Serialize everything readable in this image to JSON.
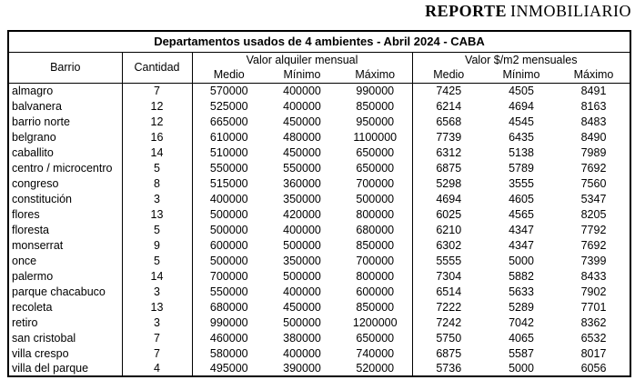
{
  "brand": {
    "bold": "REPORTE",
    "regular": "INMOBILIARIO"
  },
  "table": {
    "title": "Departamentos usados de 4 ambientes - Abril 2024 - CABA",
    "headers": {
      "barrio": "Barrio",
      "cantidad": "Cantidad",
      "group_alquiler": "Valor alquiler mensual",
      "group_m2": "Valor $/m2 mensuales",
      "sub": [
        "Medio",
        "Mínimo",
        "Máximo",
        "Medio",
        "Mínimo",
        "Máximo"
      ]
    },
    "rows": [
      [
        "almagro",
        "7",
        "570000",
        "400000",
        "990000",
        "7425",
        "4505",
        "8491"
      ],
      [
        "balvanera",
        "12",
        "525000",
        "400000",
        "850000",
        "6214",
        "4694",
        "8163"
      ],
      [
        "barrio norte",
        "12",
        "665000",
        "450000",
        "950000",
        "6568",
        "4545",
        "8483"
      ],
      [
        "belgrano",
        "16",
        "610000",
        "480000",
        "1100000",
        "7739",
        "6435",
        "8490"
      ],
      [
        "caballito",
        "14",
        "510000",
        "450000",
        "650000",
        "6312",
        "5138",
        "7989"
      ],
      [
        "centro / microcentro",
        "5",
        "550000",
        "550000",
        "650000",
        "6875",
        "5789",
        "7692"
      ],
      [
        "congreso",
        "8",
        "515000",
        "360000",
        "700000",
        "5298",
        "3555",
        "7560"
      ],
      [
        "constitución",
        "3",
        "400000",
        "350000",
        "500000",
        "4694",
        "4605",
        "5347"
      ],
      [
        "flores",
        "13",
        "500000",
        "420000",
        "800000",
        "6025",
        "4565",
        "8205"
      ],
      [
        "floresta",
        "5",
        "500000",
        "400000",
        "680000",
        "6210",
        "4347",
        "7792"
      ],
      [
        "monserrat",
        "9",
        "600000",
        "500000",
        "850000",
        "6302",
        "4347",
        "7692"
      ],
      [
        "once",
        "5",
        "500000",
        "350000",
        "700000",
        "5555",
        "5000",
        "7399"
      ],
      [
        "palermo",
        "14",
        "700000",
        "500000",
        "800000",
        "7304",
        "5882",
        "8433"
      ],
      [
        "parque chacabuco",
        "3",
        "550000",
        "400000",
        "600000",
        "6514",
        "5633",
        "7902"
      ],
      [
        "recoleta",
        "13",
        "680000",
        "450000",
        "850000",
        "7222",
        "5289",
        "7701"
      ],
      [
        "retiro",
        "3",
        "990000",
        "500000",
        "1200000",
        "7242",
        "7042",
        "8362"
      ],
      [
        "san cristobal",
        "7",
        "460000",
        "380000",
        "650000",
        "5750",
        "4065",
        "6532"
      ],
      [
        "villa crespo",
        "7",
        "580000",
        "400000",
        "740000",
        "6875",
        "5587",
        "8017"
      ],
      [
        "villa del parque",
        "4",
        "495000",
        "390000",
        "520000",
        "5736",
        "5000",
        "6056"
      ]
    ]
  }
}
